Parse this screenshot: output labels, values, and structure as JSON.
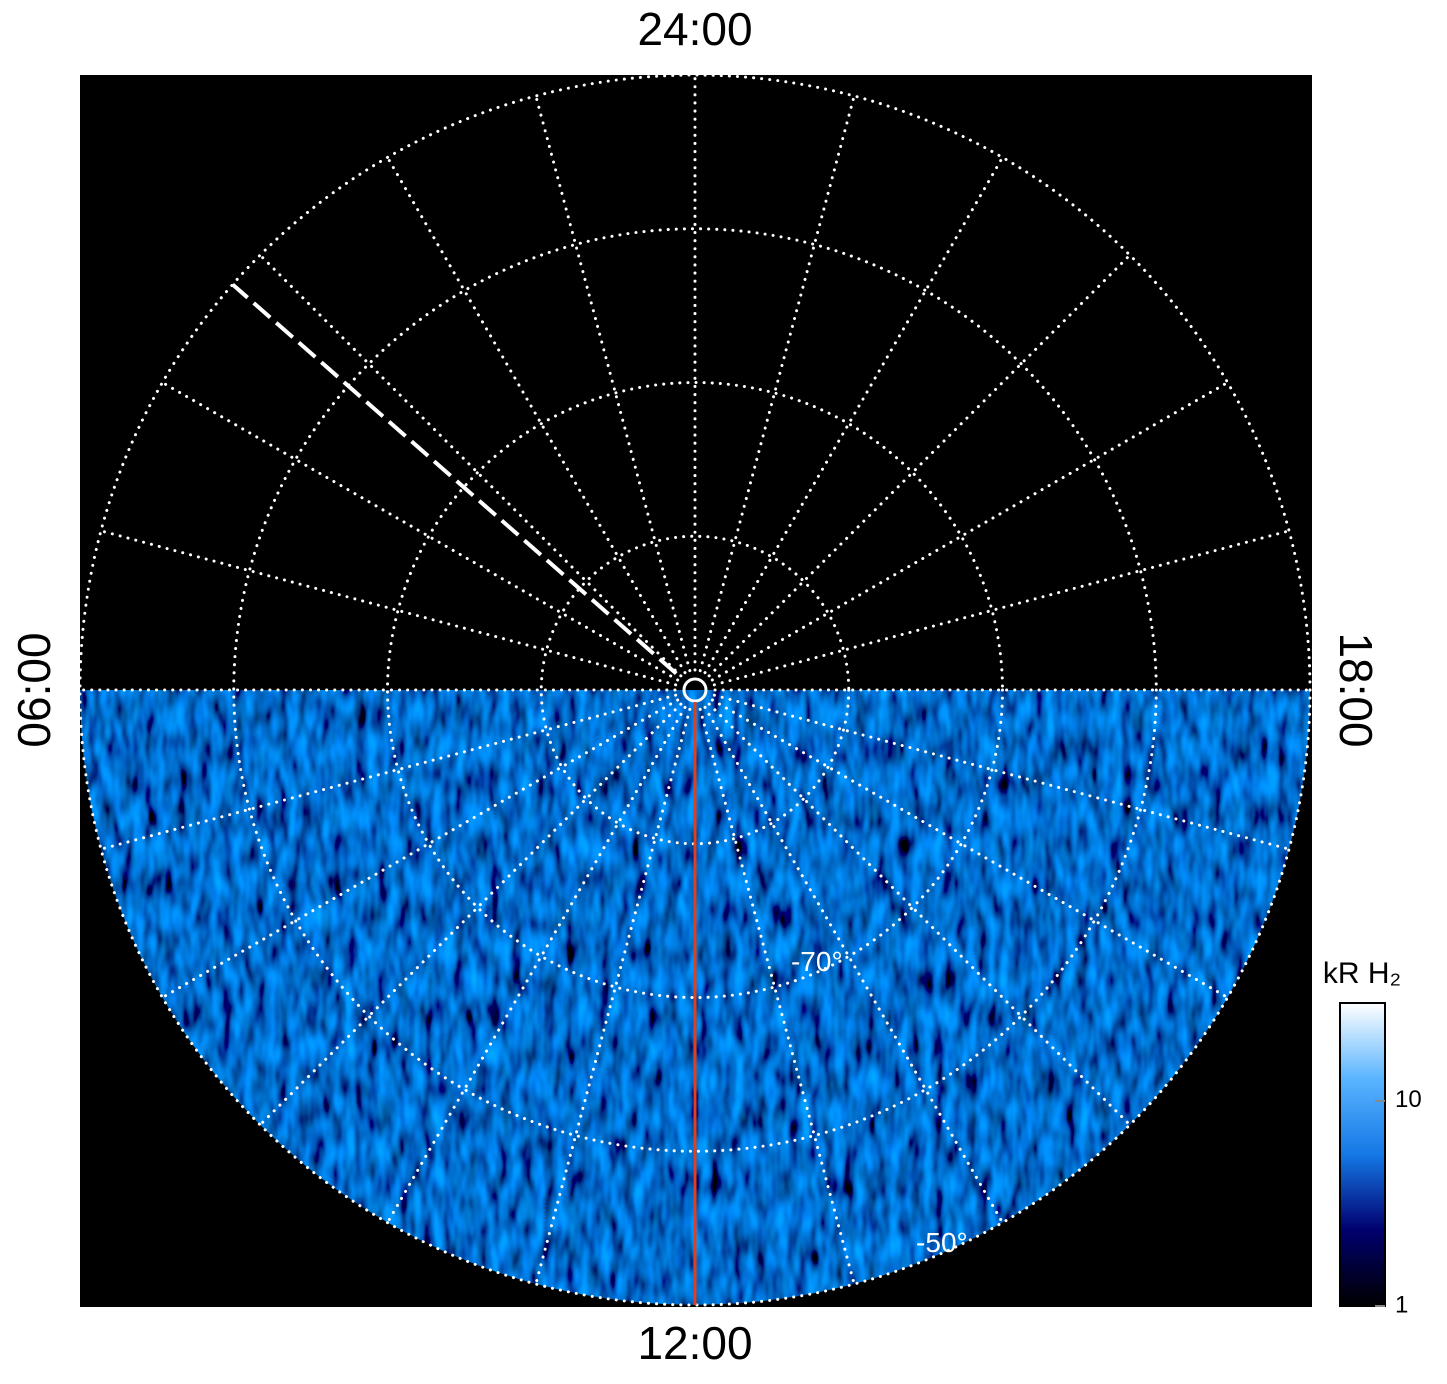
{
  "chart_data": {
    "type": "polar-map",
    "rlim": [
      -90,
      -50
    ],
    "rticks": [
      -80,
      -70,
      -60,
      -50
    ],
    "rtick_labels": [
      {
        "value": -70,
        "label": "-70°"
      },
      {
        "value": -50,
        "label": "-50°"
      }
    ],
    "mlt_grid": [
      0,
      1,
      2,
      3,
      4,
      5,
      6,
      7,
      8,
      9,
      10,
      11,
      12,
      13,
      14,
      15,
      16,
      17,
      18,
      19,
      20,
      21,
      22,
      23
    ],
    "mlt_labels": [
      {
        "value": 24,
        "label": "24:00"
      },
      {
        "value": 6,
        "label": "06:00"
      },
      {
        "value": 18,
        "label": "18:00"
      },
      {
        "value": 12,
        "label": "12:00"
      }
    ],
    "highlight_meridians": [
      {
        "value": 12,
        "color": "#e0401e",
        "style": "solid"
      },
      {
        "value": 3.25,
        "color": "#ffffff",
        "style": "dashed"
      }
    ],
    "colorbar": {
      "label": "kR H₂",
      "lim": [
        1,
        30
      ],
      "ticks": [
        1,
        10
      ],
      "log": true,
      "colors": [
        "#000000",
        "#00006e",
        "#1478e6",
        "#5ab4ff",
        "#ffffff"
      ]
    }
  }
}
